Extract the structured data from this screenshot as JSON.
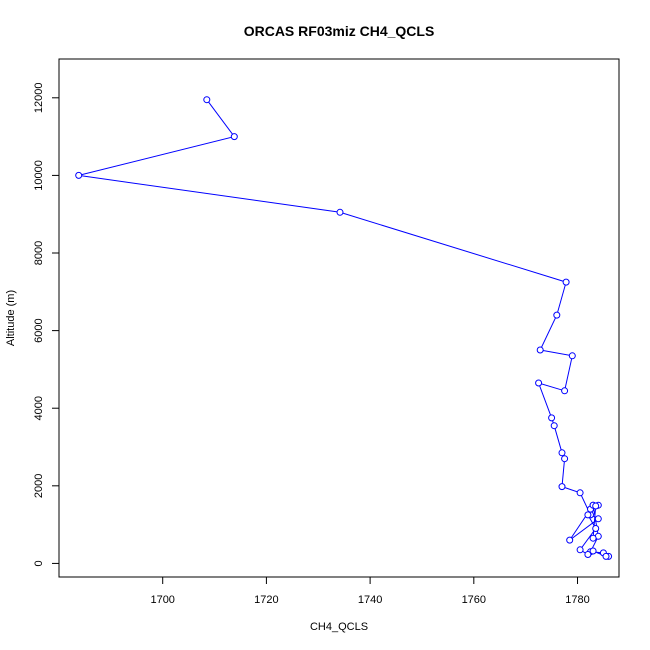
{
  "chart_data": {
    "type": "line",
    "title": "ORCAS RF03miz CH4_QCLS",
    "xlabel": "CH4_QCLS",
    "ylabel": "Altitude (m)",
    "xlim": [
      1680,
      1788
    ],
    "ylim": [
      -350,
      13000
    ],
    "x_ticks": [
      1700,
      1720,
      1740,
      1760,
      1780
    ],
    "y_ticks": [
      0,
      2000,
      4000,
      6000,
      8000,
      10000,
      12000
    ],
    "grid": false,
    "legend": "none",
    "line_color": "#0000ff",
    "marker": "open-circle",
    "series": [
      {
        "x": [
          1708.5,
          1713.8,
          1683.8,
          1734.2,
          1777.8,
          1776.0,
          1772.8,
          1779.0,
          1777.5,
          1772.5,
          1775.0,
          1775.5,
          1777.0,
          1777.5,
          1777.0,
          1780.5,
          1782.5,
          1784.0,
          1778.5,
          1783.0,
          1784.0,
          1782.5,
          1785.0,
          1786.0,
          1785.5,
          1783.0,
          1782.0,
          1780.5,
          1783.5,
          1782.0,
          1782.5,
          1783.0,
          1784.0,
          1783.5,
          1783.0
        ],
        "y": [
          11950,
          11000,
          10000,
          9050,
          7250,
          6400,
          5500,
          5350,
          4450,
          4650,
          3750,
          3550,
          2850,
          2700,
          1980,
          1820,
          1250,
          1150,
          600,
          1500,
          700,
          300,
          270,
          180,
          180,
          320,
          230,
          350,
          900,
          1250,
          1400,
          1500,
          1500,
          1480,
          650
        ]
      }
    ]
  }
}
